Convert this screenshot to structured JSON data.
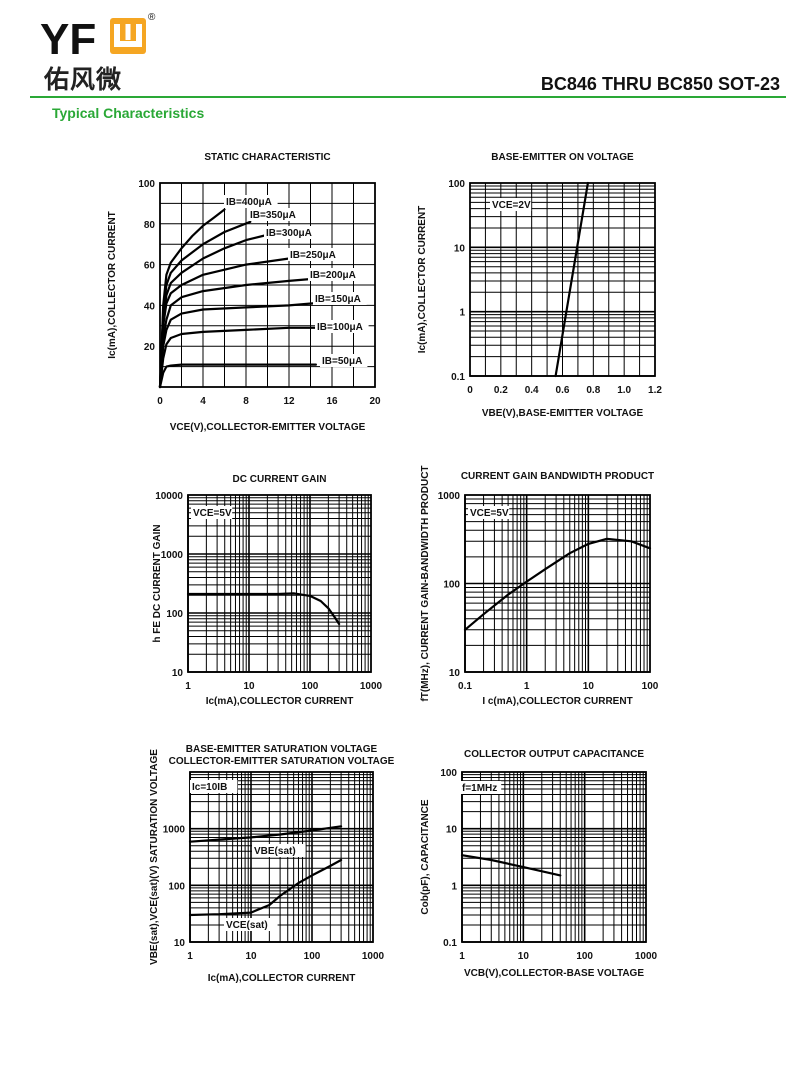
{
  "header": {
    "brand": "YFW",
    "brand_cn": "佑风微",
    "registered": "®",
    "part_title": "BC846 THRU BC850 SOT-23",
    "section_title": "Typical Characteristics",
    "brand_color": "#2aa836",
    "brand_accent": "#f5a623"
  },
  "chart_data": [
    {
      "type": "line",
      "title": "STATIC CHARACTERISTIC",
      "xlabel": "VCE(V),COLLECTOR-EMITTER VOLTAGE",
      "ylabel": "Ic(mA),COLLECTOR CURRENT",
      "xscale": "linear",
      "yscale": "linear",
      "xlim": [
        0,
        20
      ],
      "ylim": [
        0,
        100
      ],
      "xticks": [
        0,
        4,
        8,
        12,
        16,
        20
      ],
      "yticks": [
        20,
        40,
        60,
        80,
        100
      ],
      "grid": true,
      "series": [
        {
          "name": "IB=400μA",
          "x": [
            0,
            0.3,
            0.6,
            1,
            2,
            3,
            4,
            5,
            6
          ],
          "y": [
            0,
            40,
            55,
            61,
            68,
            74,
            79,
            83,
            87
          ]
        },
        {
          "name": "IB=350μA",
          "x": [
            0,
            0.3,
            0.6,
            1,
            2,
            4,
            6,
            8.4
          ],
          "y": [
            0,
            36,
            50,
            56,
            62,
            70,
            76,
            81
          ]
        },
        {
          "name": "IB=300μA",
          "x": [
            0,
            0.3,
            0.6,
            1,
            2,
            4,
            6,
            8,
            10.3
          ],
          "y": [
            0,
            33,
            45,
            51,
            56,
            63,
            68,
            72,
            75
          ]
        },
        {
          "name": "IB=250μA",
          "x": [
            0,
            0.3,
            0.6,
            1,
            2,
            4,
            8,
            12,
            14.5
          ],
          "y": [
            0,
            30,
            41,
            46,
            50,
            55,
            60,
            63,
            64
          ]
        },
        {
          "name": "IB=200μA",
          "x": [
            0,
            0.3,
            0.6,
            1,
            2,
            4,
            8,
            12,
            14.2
          ],
          "y": [
            0,
            24,
            33,
            40,
            44,
            47,
            50,
            52,
            53
          ]
        },
        {
          "name": "IB=150μA",
          "x": [
            0,
            0.3,
            0.6,
            1,
            2,
            4,
            8,
            12,
            14.2
          ],
          "y": [
            0,
            20,
            28,
            33,
            36,
            38,
            39,
            40,
            41
          ]
        },
        {
          "name": "IB=100μA",
          "x": [
            0,
            0.3,
            0.6,
            1,
            2,
            4,
            8,
            12,
            15.3
          ],
          "y": [
            0,
            14,
            21,
            24,
            26,
            27,
            28,
            29,
            29
          ]
        },
        {
          "name": "IB=50μA",
          "x": [
            0,
            0.3,
            0.6,
            1,
            2,
            6,
            10,
            14.5
          ],
          "y": [
            0,
            7,
            10,
            10.5,
            11,
            11,
            11,
            11
          ]
        }
      ]
    },
    {
      "type": "line",
      "title": "BASE-EMITTER ON VOLTAGE",
      "xlabel": "VBE(V),BASE-EMITTER VOLTAGE",
      "ylabel": "Ic(mA),COLLECTOR CURRENT",
      "xscale": "linear",
      "yscale": "log",
      "xlim": [
        0,
        1.2
      ],
      "ylim": [
        0.1,
        100
      ],
      "xticks": [
        0,
        0.2,
        0.4,
        0.6,
        0.8,
        1.0,
        1.2
      ],
      "yticks": [
        0.1,
        1,
        10,
        100
      ],
      "xticklabels": [
        "0",
        "0.2",
        "0.4",
        "0.6",
        "0.8",
        "1.0",
        "1.2"
      ],
      "grid": true,
      "annotations": [
        "VCE=2V"
      ],
      "series": [
        {
          "x": [
            0.555,
            0.765
          ],
          "y": [
            0.1,
            100
          ]
        }
      ]
    },
    {
      "type": "line",
      "title": "DC CURRENT GAIN",
      "xlabel": "Ic(mA),COLLECTOR CURRENT",
      "ylabel": "h FE DC CURRENT GAIN",
      "xscale": "log",
      "yscale": "log",
      "xlim": [
        1,
        1000
      ],
      "ylim": [
        10,
        10000
      ],
      "xticks": [
        1,
        10,
        100,
        1000
      ],
      "yticks": [
        10,
        100,
        1000,
        10000
      ],
      "grid": true,
      "annotations": [
        "VCE=5V"
      ],
      "series": [
        {
          "x": [
            1,
            10,
            30,
            55,
            100,
            150,
            200,
            260,
            300
          ],
          "y": [
            210,
            210,
            210,
            215,
            195,
            160,
            120,
            82,
            65
          ]
        }
      ]
    },
    {
      "type": "line",
      "title": "CURRENT GAIN BANDWIDTH PRODUCT",
      "xlabel": "I c(mA),COLLECTOR CURRENT",
      "ylabel": "fT(MHz), CURRENT GAIN-BANDWIDTH PRODUCT",
      "xscale": "log",
      "yscale": "log",
      "xlim": [
        0.1,
        100
      ],
      "ylim": [
        10,
        1000
      ],
      "xticks": [
        0.1,
        1,
        10,
        100
      ],
      "yticks": [
        10,
        100,
        1000
      ],
      "grid": true,
      "annotations": [
        "VCE=5V"
      ],
      "series": [
        {
          "x": [
            0.1,
            0.2,
            0.5,
            1,
            2,
            5,
            10,
            20,
            50,
            100
          ],
          "y": [
            30,
            45,
            75,
            105,
            145,
            220,
            280,
            320,
            300,
            250
          ]
        }
      ]
    },
    {
      "type": "line",
      "title": "BASE-EMITTER SATURATION VOLTAGE",
      "subtitle": "COLLECTOR-EMITTER SATURATION VOLTAGE",
      "xlabel": "Ic(mA),COLLECTOR CURRENT",
      "ylabel": "VBE(sat),VCE(sat)(V) SATURATION VOLTAGE",
      "xscale": "log",
      "yscale": "log",
      "xlim": [
        1,
        1000
      ],
      "ylim": [
        10,
        10000
      ],
      "xticks": [
        1,
        10,
        100,
        1000
      ],
      "yticks": [
        10,
        100,
        1000,
        10000
      ],
      "yticklabels": [
        "10",
        "100",
        "1000",
        ""
      ],
      "grid": true,
      "annotations": [
        "Ic=10IB"
      ],
      "series": [
        {
          "name": "VBE(sat)",
          "x": [
            1,
            3,
            10,
            30,
            100,
            300
          ],
          "y": [
            590,
            640,
            700,
            790,
            930,
            1100
          ]
        },
        {
          "name": "VCE(sat)",
          "x": [
            1,
            3,
            10,
            20,
            30,
            60,
            100,
            200,
            300
          ],
          "y": [
            30,
            31,
            33,
            45,
            65,
            110,
            150,
            220,
            280
          ]
        }
      ]
    },
    {
      "type": "line",
      "title": "COLLECTOR OUTPUT CAPACITANCE",
      "xlabel": "VCB(V),COLLECTOR-BASE VOLTAGE",
      "ylabel": "Cob(pF), CAPACITANCE",
      "xscale": "log",
      "yscale": "log",
      "xlim": [
        1,
        1000
      ],
      "ylim": [
        0.1,
        100
      ],
      "xticks": [
        1,
        10,
        100,
        1000
      ],
      "yticks": [
        0.1,
        1,
        10,
        100
      ],
      "grid": true,
      "annotations": [
        "f=1MHz"
      ],
      "series": [
        {
          "x": [
            1,
            3,
            10,
            40
          ],
          "y": [
            3.4,
            2.8,
            2.1,
            1.5
          ]
        }
      ]
    }
  ]
}
